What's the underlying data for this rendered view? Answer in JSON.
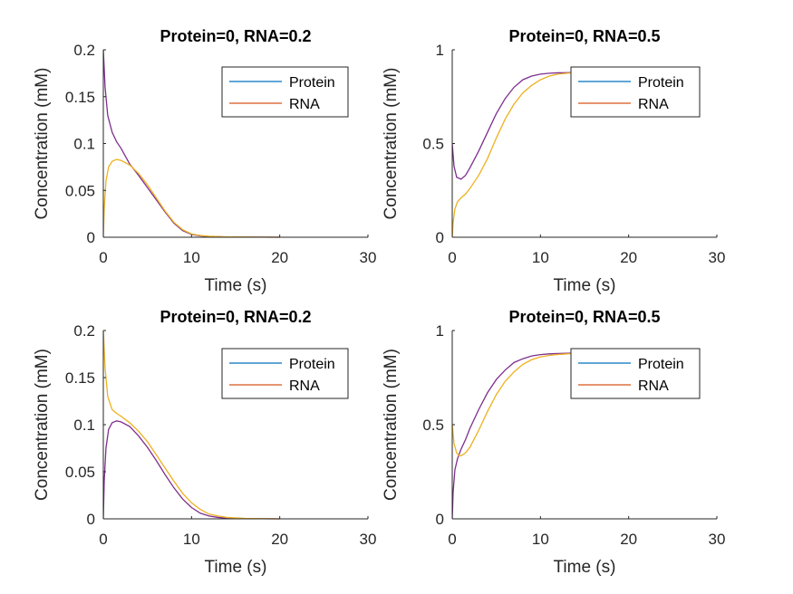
{
  "chart_data": [
    {
      "type": "line",
      "title": "Protein=0, RNA=0.2",
      "xlabel": "Time (s)",
      "ylabel": "Concentration (mM)",
      "xlim": [
        0,
        30
      ],
      "ylim": [
        0,
        0.2
      ],
      "xticks": [
        "0",
        "10",
        "20",
        "30"
      ],
      "yticks": [
        "0",
        "0.05",
        "0.1",
        "0.15",
        "0.2"
      ],
      "legend": {
        "position": "top-right",
        "entries": [
          {
            "label": "Protein",
            "color": "#0072BD"
          },
          {
            "label": "RNA",
            "color": "#D95319"
          }
        ]
      },
      "series": [
        {
          "color": "#7E2F8E",
          "x": [
            0,
            0.2,
            0.5,
            1,
            1.5,
            2,
            3,
            4,
            5,
            6,
            7,
            8,
            9,
            10,
            11,
            12,
            14,
            16,
            18,
            20
          ],
          "y": [
            0.2,
            0.16,
            0.13,
            0.112,
            0.102,
            0.095,
            0.078,
            0.066,
            0.053,
            0.04,
            0.027,
            0.015,
            0.007,
            0.003,
            0.0015,
            0.0008,
            0.0004,
            0.0002,
            0.0001,
            0
          ]
        },
        {
          "color": "#EDB120",
          "x": [
            0,
            0.1,
            0.3,
            0.6,
            1,
            1.5,
            2,
            3,
            4,
            5,
            6,
            7,
            8,
            9,
            10,
            11,
            12,
            14,
            16,
            18,
            20
          ],
          "y": [
            0,
            0.03,
            0.06,
            0.075,
            0.081,
            0.083,
            0.082,
            0.077,
            0.068,
            0.056,
            0.042,
            0.028,
            0.016,
            0.008,
            0.0035,
            0.0018,
            0.001,
            0.0004,
            0.0002,
            0.0001,
            0
          ]
        }
      ]
    },
    {
      "type": "line",
      "title": "Protein=0, RNA=0.5",
      "xlabel": "Time (s)",
      "ylabel": "Concentration (mM)",
      "xlim": [
        0,
        30
      ],
      "ylim": [
        0,
        1
      ],
      "xticks": [
        "0",
        "10",
        "20",
        "30"
      ],
      "yticks": [
        "0",
        "0.5",
        "1"
      ],
      "legend": {
        "position": "top-right",
        "entries": [
          {
            "label": "Protein",
            "color": "#0072BD"
          },
          {
            "label": "RNA",
            "color": "#D95319"
          }
        ]
      },
      "series": [
        {
          "color": "#7E2F8E",
          "x": [
            0,
            0.2,
            0.5,
            1,
            1.5,
            2,
            3,
            4,
            5,
            6,
            7,
            8,
            9,
            10,
            11,
            12,
            13,
            14
          ],
          "y": [
            0.5,
            0.38,
            0.32,
            0.31,
            0.33,
            0.37,
            0.46,
            0.56,
            0.66,
            0.74,
            0.8,
            0.84,
            0.86,
            0.87,
            0.875,
            0.877,
            0.878,
            0.879
          ]
        },
        {
          "color": "#EDB120",
          "x": [
            0,
            0.1,
            0.3,
            0.6,
            1,
            1.5,
            2,
            3,
            4,
            5,
            6,
            7,
            8,
            9,
            10,
            11,
            12,
            13,
            14
          ],
          "y": [
            0,
            0.08,
            0.15,
            0.19,
            0.21,
            0.23,
            0.26,
            0.33,
            0.42,
            0.53,
            0.63,
            0.71,
            0.77,
            0.81,
            0.84,
            0.86,
            0.87,
            0.875,
            0.878
          ]
        }
      ]
    },
    {
      "type": "line",
      "title": "Protein=0, RNA=0.2",
      "xlabel": "Time (s)",
      "ylabel": "Concentration (mM)",
      "xlim": [
        0,
        30
      ],
      "ylim": [
        0,
        0.2
      ],
      "xticks": [
        "0",
        "10",
        "20",
        "30"
      ],
      "yticks": [
        "0",
        "0.05",
        "0.1",
        "0.15",
        "0.2"
      ],
      "legend": {
        "position": "top-right",
        "entries": [
          {
            "label": "Protein",
            "color": "#0072BD"
          },
          {
            "label": "RNA",
            "color": "#D95319"
          }
        ]
      },
      "series": [
        {
          "color": "#7E2F8E",
          "x": [
            0,
            0.1,
            0.3,
            0.6,
            1,
            1.5,
            2,
            3,
            4,
            5,
            6,
            7,
            8,
            9,
            10,
            11,
            12,
            13,
            14,
            16,
            18,
            20
          ],
          "y": [
            0,
            0.04,
            0.075,
            0.095,
            0.102,
            0.104,
            0.103,
            0.098,
            0.088,
            0.076,
            0.062,
            0.047,
            0.033,
            0.021,
            0.012,
            0.006,
            0.003,
            0.0015,
            0.0008,
            0.0003,
            0.0001,
            0
          ]
        },
        {
          "color": "#EDB120",
          "x": [
            0,
            0.2,
            0.5,
            1,
            1.5,
            2,
            3,
            4,
            5,
            6,
            7,
            8,
            9,
            10,
            11,
            12,
            13,
            14,
            16,
            18,
            20
          ],
          "y": [
            0.2,
            0.16,
            0.13,
            0.116,
            0.112,
            0.109,
            0.102,
            0.093,
            0.082,
            0.068,
            0.054,
            0.04,
            0.027,
            0.017,
            0.01,
            0.005,
            0.003,
            0.0015,
            0.0005,
            0.0002,
            0
          ]
        }
      ]
    },
    {
      "type": "line",
      "title": "Protein=0, RNA=0.5",
      "xlabel": "Time (s)",
      "ylabel": "Concentration (mM)",
      "xlim": [
        0,
        30
      ],
      "ylim": [
        0,
        1
      ],
      "xticks": [
        "0",
        "10",
        "20",
        "30"
      ],
      "yticks": [
        "0",
        "0.5",
        "1"
      ],
      "legend": {
        "position": "top-right",
        "entries": [
          {
            "label": "Protein",
            "color": "#0072BD"
          },
          {
            "label": "RNA",
            "color": "#D95319"
          }
        ]
      },
      "series": [
        {
          "color": "#7E2F8E",
          "x": [
            0,
            0.1,
            0.3,
            0.6,
            1,
            1.5,
            2,
            3,
            4,
            5,
            6,
            7,
            8,
            9,
            10,
            11,
            12,
            13,
            14
          ],
          "y": [
            0,
            0.14,
            0.26,
            0.32,
            0.37,
            0.42,
            0.48,
            0.58,
            0.67,
            0.74,
            0.79,
            0.83,
            0.85,
            0.865,
            0.872,
            0.876,
            0.878,
            0.879,
            0.88
          ]
        },
        {
          "color": "#EDB120",
          "x": [
            0,
            0.2,
            0.5,
            0.8,
            1,
            1.5,
            2,
            3,
            4,
            5,
            6,
            7,
            8,
            9,
            10,
            11,
            12,
            13,
            14
          ],
          "y": [
            0.5,
            0.4,
            0.35,
            0.335,
            0.335,
            0.35,
            0.38,
            0.47,
            0.57,
            0.66,
            0.73,
            0.78,
            0.82,
            0.845,
            0.86,
            0.868,
            0.873,
            0.876,
            0.878
          ]
        }
      ]
    }
  ]
}
